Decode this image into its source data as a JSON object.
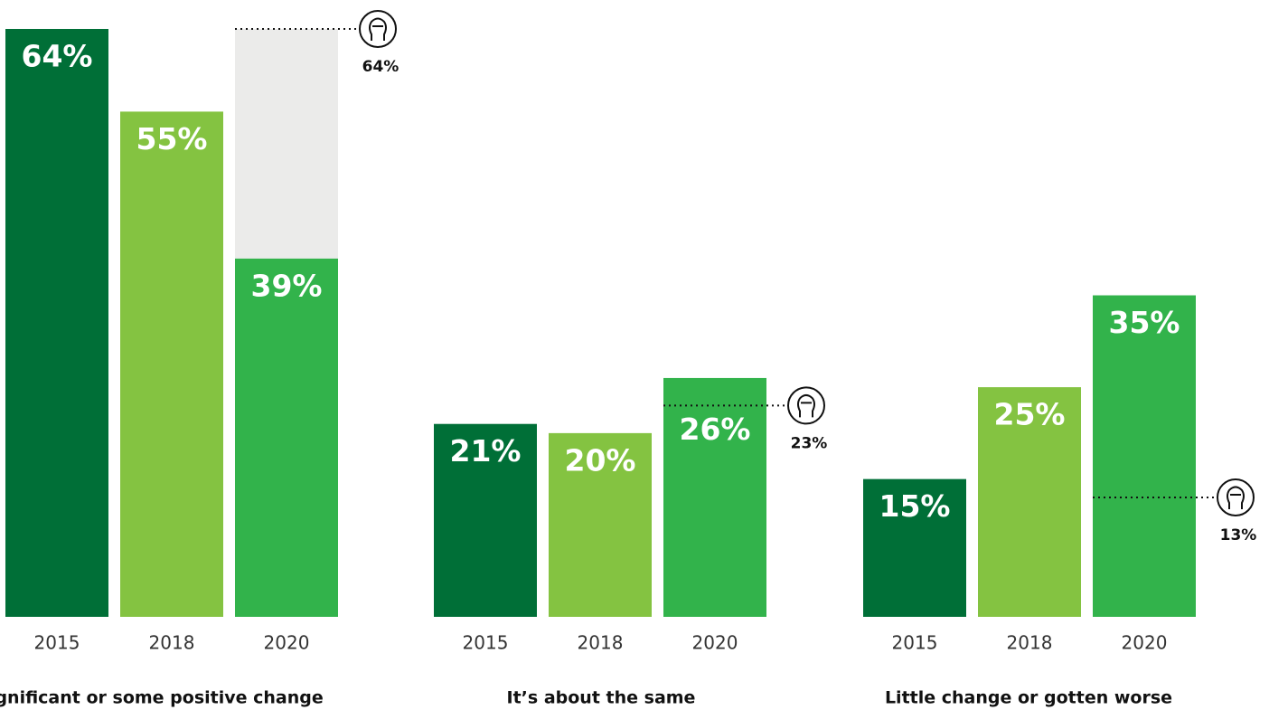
{
  "chart_data": [
    {
      "type": "bar",
      "title": "Significant or some positive change",
      "categories": [
        "2015",
        "2018",
        "2020"
      ],
      "values": [
        64,
        55,
        39
      ],
      "value_labels": [
        "64%",
        "55%",
        "39%"
      ],
      "colors": [
        "#006f37",
        "#84c341",
        "#32b34b"
      ],
      "reference": 64,
      "reference_label": "64%",
      "reference_color": "#ebebea",
      "ylim": [
        0,
        64
      ]
    },
    {
      "type": "bar",
      "title": "It’s about the same",
      "categories": [
        "2015",
        "2018",
        "2020"
      ],
      "values": [
        21,
        20,
        26
      ],
      "value_labels": [
        "21%",
        "20%",
        "26%"
      ],
      "colors": [
        "#006f37",
        "#84c341",
        "#32b34b"
      ],
      "reference": 23,
      "reference_label": "23%",
      "reference_color": "#ebebea",
      "ylim": [
        0,
        64
      ]
    },
    {
      "type": "bar",
      "title": "Little change or gotten worse",
      "categories": [
        "2015",
        "2018",
        "2020"
      ],
      "values": [
        15,
        25,
        35
      ],
      "value_labels": [
        "15%",
        "25%",
        "35%"
      ],
      "colors": [
        "#006f37",
        "#84c341",
        "#32b34b"
      ],
      "reference": 13,
      "reference_label": "13%",
      "reference_color": "#ebebea",
      "ylim": [
        0,
        64
      ]
    }
  ]
}
